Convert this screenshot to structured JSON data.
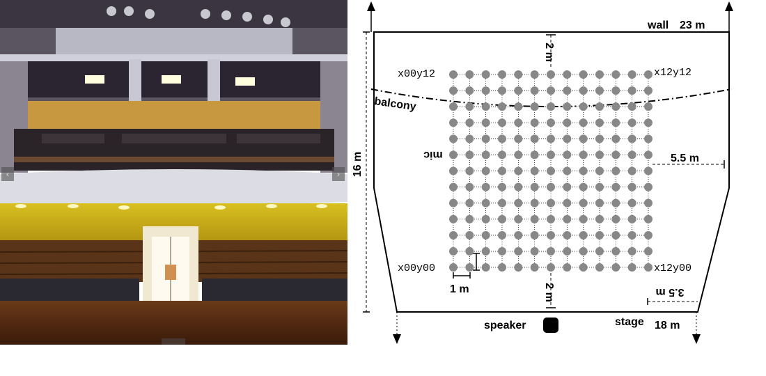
{
  "photo": {
    "nav_prev_icon": "chevron-left-icon",
    "nav_next_icon": "chevron-right-icon",
    "fullscreen_icon": "expand-icon"
  },
  "diagram": {
    "wall_label": "wall",
    "wall_width": "23 m",
    "depth_label": "16 m",
    "balcony_label": "balcony",
    "mic_label": "mic",
    "top_gap_label": "2 m",
    "bottom_gap_label": "2 m",
    "side_gap_label": "5.5 m",
    "spacing_label": "1 m",
    "stage_inset_label": "3.5 m",
    "stage_label": "stage",
    "stage_width": "18 m",
    "speaker_label": "speaker",
    "corner_labels": {
      "top_left": "x00y12",
      "top_right": "x12y12",
      "bottom_left": "x00y00",
      "bottom_right": "x12y00"
    },
    "grid": {
      "columns": 13,
      "rows": 13
    },
    "colors": {
      "mic_point": "#888888",
      "line": "#000000"
    }
  }
}
